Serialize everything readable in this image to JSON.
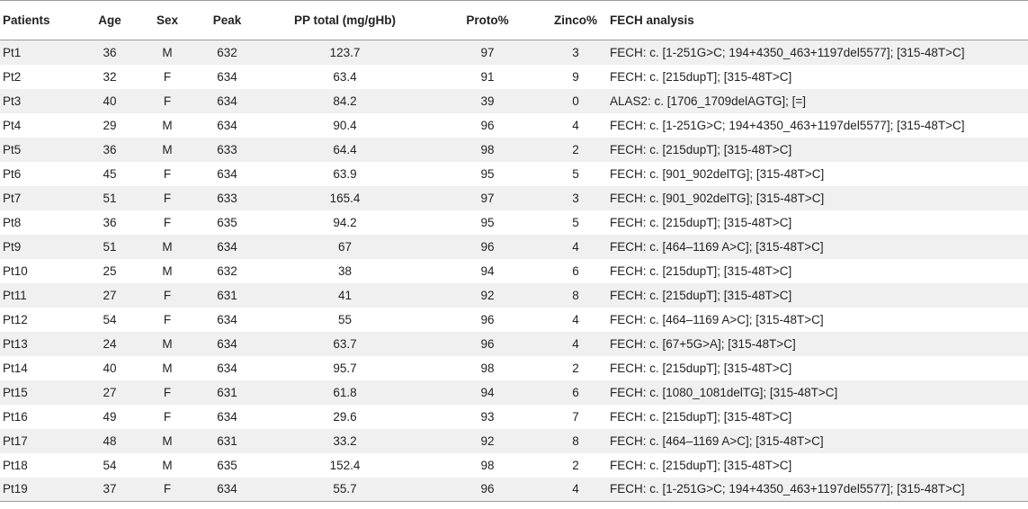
{
  "table": {
    "headers": [
      "Patients",
      "Age",
      "Sex",
      "Peak",
      "PP total (mg/gHb)",
      "Proto%",
      "Zinco%",
      "FECH analysis"
    ],
    "rows": [
      [
        "Pt1",
        "36",
        "M",
        "632",
        "123.7",
        "97",
        "3",
        "FECH: c. [1-251G>C; 194+4350_463+1197del5577]; [315-48T>C]"
      ],
      [
        "Pt2",
        "32",
        "F",
        "634",
        "63.4",
        "91",
        "9",
        "FECH: c. [215dupT]; [315-48T>C]"
      ],
      [
        "Pt3",
        "40",
        "F",
        "634",
        "84.2",
        "39",
        "0",
        "ALAS2: c. [1706_1709delAGTG]; [=]"
      ],
      [
        "Pt4",
        "29",
        "M",
        "634",
        "90.4",
        "96",
        "4",
        "FECH: c. [1-251G>C; 194+4350_463+1197del5577]; [315-48T>C]"
      ],
      [
        "Pt5",
        "36",
        "M",
        "633",
        "64.4",
        "98",
        "2",
        "FECH: c. [215dupT]; [315-48T>C]"
      ],
      [
        "Pt6",
        "45",
        "F",
        "634",
        "63.9",
        "95",
        "5",
        "FECH: c. [901_902delTG]; [315-48T>C]"
      ],
      [
        "Pt7",
        "51",
        "F",
        "633",
        "165.4",
        "97",
        "3",
        "FECH: c. [901_902delTG]; [315-48T>C]"
      ],
      [
        "Pt8",
        "36",
        "F",
        "635",
        "94.2",
        "95",
        "5",
        "FECH: c. [215dupT]; [315-48T>C]"
      ],
      [
        "Pt9",
        "51",
        "M",
        "634",
        "67",
        "96",
        "4",
        "FECH: c. [464–1169 A>C]; [315-48T>C]"
      ],
      [
        "Pt10",
        "25",
        "M",
        "632",
        "38",
        "94",
        "6",
        "FECH: c. [215dupT]; [315-48T>C]"
      ],
      [
        "Pt11",
        "27",
        "F",
        "631",
        "41",
        "92",
        "8",
        "FECH: c. [215dupT]; [315-48T>C]"
      ],
      [
        "Pt12",
        "54",
        "F",
        "634",
        "55",
        "96",
        "4",
        "FECH: c. [464–1169 A>C]; [315-48T>C]"
      ],
      [
        "Pt13",
        "24",
        "M",
        "634",
        "63.7",
        "96",
        "4",
        "FECH: c. [67+5G>A]; [315-48T>C]"
      ],
      [
        "Pt14",
        "40",
        "M",
        "634",
        "95.7",
        "98",
        "2",
        "FECH: c. [215dupT]; [315-48T>C]"
      ],
      [
        "Pt15",
        "27",
        "F",
        "631",
        "61.8",
        "94",
        "6",
        "FECH: c. [1080_1081delTG]; [315-48T>C]"
      ],
      [
        "Pt16",
        "49",
        "F",
        "634",
        "29.6",
        "93",
        "7",
        "FECH: c. [215dupT]; [315-48T>C]"
      ],
      [
        "Pt17",
        "48",
        "M",
        "631",
        "33.2",
        "92",
        "8",
        "FECH: c. [464–1169 A>C]; [315-48T>C]"
      ],
      [
        "Pt18",
        "54",
        "M",
        "635",
        "152.4",
        "98",
        "2",
        "FECH: c. [215dupT]; [315-48T>C]"
      ],
      [
        "Pt19",
        "37",
        "F",
        "634",
        "55.7",
        "96",
        "4",
        "FECH: c. [1-251G>C; 194+4350_463+1197del5577]; [315-48T>C]"
      ]
    ]
  }
}
